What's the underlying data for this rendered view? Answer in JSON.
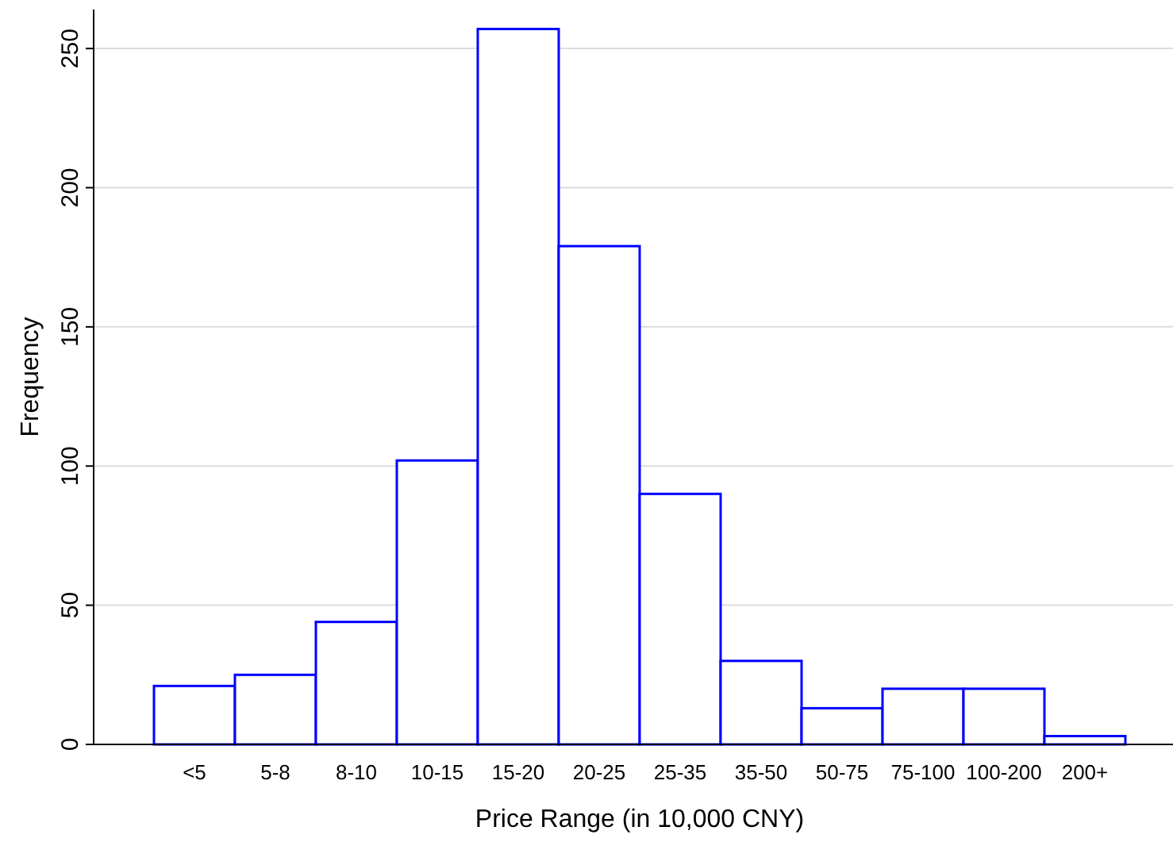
{
  "chart_data": {
    "type": "bar",
    "xlabel": "Price Range (in 10,000 CNY)",
    "ylabel": "Frequency",
    "categories": [
      "<5",
      "5-8",
      "8-10",
      "10-15",
      "15-20",
      "20-25",
      "25-35",
      "35-50",
      "50-75",
      "75-100",
      "100-200",
      "200+"
    ],
    "values": [
      21,
      25,
      44,
      102,
      257,
      179,
      90,
      30,
      13,
      20,
      20,
      3
    ],
    "color": "#0000ff",
    "ylim": [
      0,
      264
    ],
    "yticks": [
      0,
      50,
      100,
      150,
      200,
      250
    ],
    "grid": "y"
  }
}
